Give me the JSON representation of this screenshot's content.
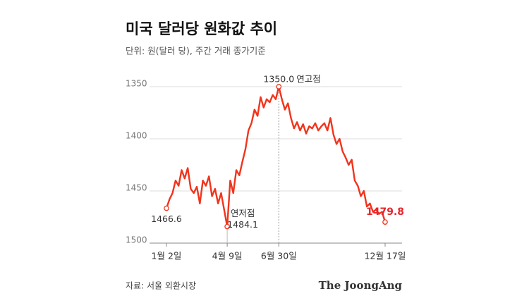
{
  "chart_data": {
    "type": "line",
    "title": "미국 달러당 원화값 추이",
    "subtitle": "단위: 원(달러 당), 주간 거래 종가기준",
    "source": "자료: 서울 외환시장",
    "brand": "The JoongAng",
    "annotations": {
      "high": "연고점",
      "low": "연저점"
    },
    "categories": [
      "1월 2일",
      null,
      null,
      null,
      null,
      null,
      null,
      null,
      null,
      null,
      null,
      null,
      null,
      null,
      null,
      null,
      null,
      null,
      null,
      null,
      "4월 9일",
      null,
      null,
      null,
      null,
      null,
      null,
      null,
      null,
      null,
      null,
      null,
      null,
      null,
      null,
      null,
      null,
      "6월 30일",
      null,
      null,
      null,
      null,
      null,
      null,
      null,
      null,
      null,
      null,
      null,
      null,
      null,
      null,
      null,
      null,
      null,
      null,
      null,
      null,
      null,
      null,
      null,
      null,
      null,
      null,
      null,
      null,
      null,
      null,
      null,
      null,
      null,
      null,
      "12월 17일"
    ],
    "series": [
      {
        "color": "#f0341c",
        "values": [
          1466.6,
          1458,
          1452,
          1440,
          1445,
          1430,
          1438,
          1428,
          1448,
          1452,
          1446,
          1462,
          1440,
          1445,
          1436,
          1455,
          1448,
          1462,
          1452,
          1468,
          1484.1,
          1440,
          1452,
          1430,
          1435,
          1422,
          1410,
          1392,
          1385,
          1372,
          1378,
          1360,
          1370,
          1362,
          1365,
          1358,
          1362,
          1350,
          1362,
          1372,
          1366,
          1380,
          1390,
          1384,
          1392,
          1386,
          1395,
          1388,
          1390,
          1385,
          1392,
          1388,
          1385,
          1392,
          1380,
          1396,
          1405,
          1400,
          1412,
          1418,
          1425,
          1420,
          1440,
          1445,
          1455,
          1450,
          1465,
          1462,
          1470,
          1468,
          1472,
          1470,
          1479.8
        ],
        "value_labels": [
          null,
          null,
          null,
          null,
          null,
          null,
          null,
          null,
          null,
          null,
          null,
          null,
          null,
          null,
          null,
          null,
          null,
          null,
          null,
          null,
          null,
          null,
          null,
          null,
          null,
          null,
          null,
          null,
          null,
          null,
          null,
          null,
          null,
          null,
          null,
          null,
          null,
          "1350.0",
          null,
          null,
          null,
          null,
          null,
          null,
          null,
          null,
          null,
          null,
          null,
          null,
          null,
          null,
          null,
          null,
          null,
          null,
          null,
          null,
          null,
          null,
          null,
          null,
          null,
          null,
          null,
          null,
          null,
          null,
          null,
          null,
          null,
          null,
          null
        ]
      }
    ],
    "ylim": [
      1350,
      1500
    ],
    "y_inverted": true,
    "yticks": [
      1350,
      1400,
      1450,
      1500
    ],
    "grid": true,
    "last_label_color": "#e8262b"
  }
}
